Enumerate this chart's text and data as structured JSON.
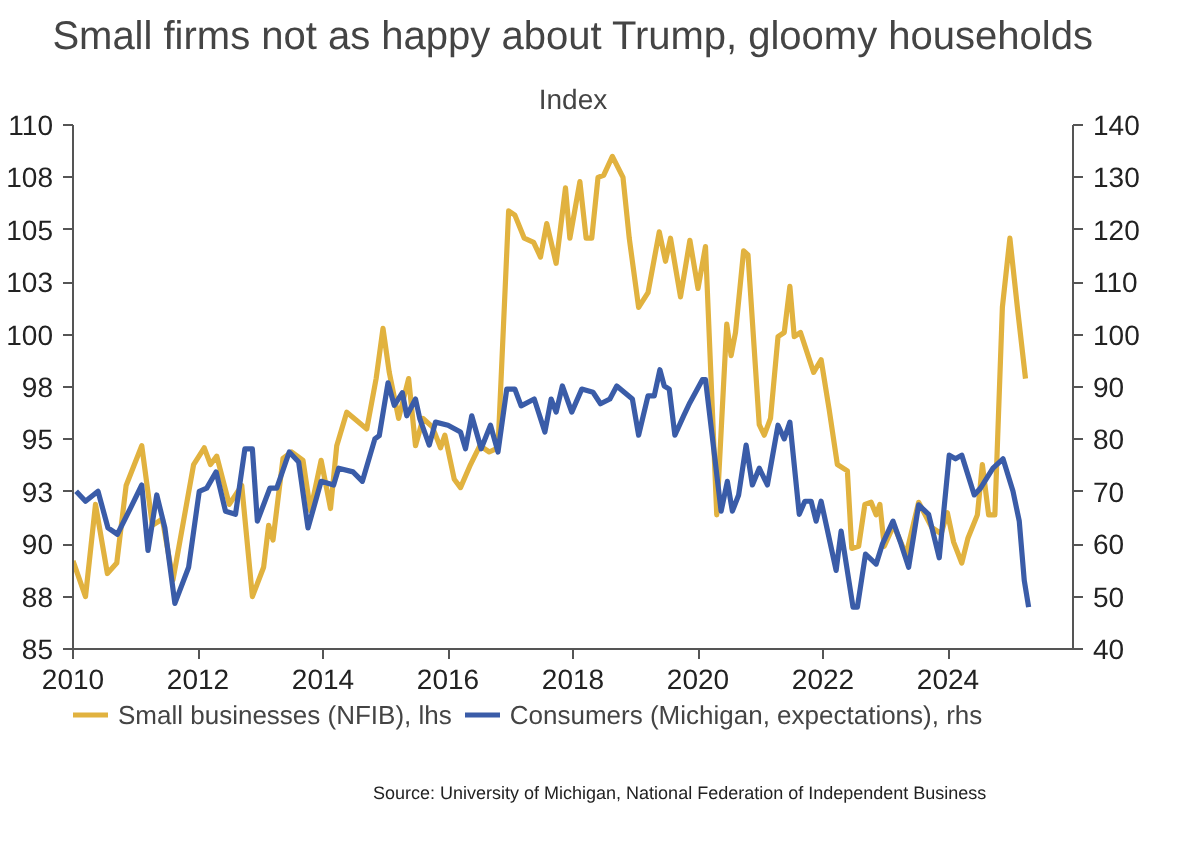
{
  "chart_data": {
    "type": "line",
    "title": "Small firms not as happy about Trump, gloomy households",
    "subtitle": "Index",
    "annotations": [
      "Source: University of Michigan, National Federation of Independent Business"
    ],
    "xlim": [
      2010,
      2026
    ],
    "xticks": [
      2010,
      2012,
      2014,
      2016,
      2018,
      2020,
      2022,
      2024
    ],
    "ylim": [
      85,
      110
    ],
    "yticks": [
      85,
      {
        "value": 87.5,
        "label": "88"
      },
      90,
      {
        "value": 92.5,
        "label": "93"
      },
      95,
      {
        "value": 97.5,
        "label": "98"
      },
      100,
      {
        "value": 102.5,
        "label": "103"
      },
      105,
      {
        "value": 107.5,
        "label": "108"
      },
      110
    ],
    "y2lim": [
      40,
      140
    ],
    "y2ticks": [
      40,
      50,
      60,
      70,
      80,
      90,
      100,
      110,
      120,
      130,
      140
    ],
    "grid": false,
    "legend": "bottom",
    "line_style": "solid",
    "series": [
      {
        "name": "Small businesses (NFIB), lhs",
        "color": "#e1b23f",
        "x": [
          2010.0,
          2010.2,
          2010.36,
          2010.55,
          2010.7,
          2010.85,
          2011.1,
          2011.27,
          2011.43,
          2011.6,
          2011.93,
          2012.1,
          2012.2,
          2012.3,
          2012.5,
          2012.7,
          2012.87,
          2013.05,
          2013.13,
          2013.2,
          2013.36,
          2013.5,
          2013.68,
          2013.8,
          2013.97,
          2014.12,
          2014.22,
          2014.38,
          2014.5,
          2014.7,
          2014.85,
          2014.96,
          2015.06,
          2015.21,
          2015.37,
          2015.48,
          2015.6,
          2015.75,
          2015.88,
          2015.95,
          2016.1,
          2016.2,
          2016.36,
          2016.51,
          2016.66,
          2016.8,
          2016.97,
          2017.07,
          2017.22,
          2017.37,
          2017.48,
          2017.58,
          2017.73,
          2017.88,
          2017.95,
          2018.11,
          2018.21,
          2018.3,
          2018.4,
          2018.49,
          2018.63,
          2018.8,
          2018.9,
          2019.05,
          2019.2,
          2019.38,
          2019.48,
          2019.56,
          2019.72,
          2019.87,
          2020.0,
          2020.12,
          2020.3,
          2020.46,
          2020.53,
          2020.6,
          2020.73,
          2020.8,
          2020.98,
          2021.06,
          2021.16,
          2021.28,
          2021.38,
          2021.47,
          2021.54,
          2021.64,
          2021.85,
          2021.97,
          2022.1,
          2022.23,
          2022.39,
          2022.46,
          2022.57,
          2022.67,
          2022.77,
          2022.85,
          2022.91,
          2022.98,
          2023.13,
          2023.33,
          2023.53,
          2023.74,
          2023.89,
          2023.99,
          2024.09,
          2024.22,
          2024.32,
          2024.47,
          2024.55,
          2024.65,
          2024.75,
          2024.87,
          2024.99,
          2025.11,
          2025.24
        ],
        "values": [
          89.2,
          87.5,
          91.9,
          88.6,
          89.1,
          92.8,
          94.7,
          90.9,
          91.2,
          88.3,
          93.8,
          94.6,
          93.8,
          94.2,
          91.9,
          92.8,
          87.5,
          88.9,
          90.9,
          90.2,
          94.1,
          94.4,
          94.0,
          91.6,
          94.0,
          91.7,
          94.7,
          96.3,
          96.0,
          95.5,
          97.9,
          100.3,
          98.2,
          96.0,
          97.9,
          94.7,
          96.0,
          95.6,
          94.6,
          95.2,
          93.1,
          92.7,
          93.8,
          94.7,
          94.4,
          94.6,
          105.9,
          105.7,
          104.6,
          104.4,
          103.7,
          105.3,
          103.4,
          107.0,
          104.6,
          107.3,
          104.6,
          104.6,
          107.5,
          107.6,
          108.5,
          107.5,
          104.6,
          101.3,
          102.0,
          104.9,
          103.5,
          104.6,
          101.8,
          104.5,
          102.2,
          104.2,
          91.4,
          100.5,
          99.0,
          100.1,
          104.0,
          103.8,
          95.7,
          95.2,
          96.0,
          99.9,
          100.1,
          102.3,
          99.9,
          100.1,
          98.2,
          98.8,
          96.4,
          93.8,
          93.5,
          89.8,
          89.9,
          91.9,
          92.0,
          91.4,
          91.9,
          89.9,
          90.9,
          89.5,
          92.0,
          90.8,
          90.5,
          91.5,
          90.1,
          89.1,
          90.3,
          91.4,
          93.8,
          91.4,
          91.4,
          101.3,
          104.6,
          101.3,
          97.9
        ]
      },
      {
        "name": "Consumers (Michigan, expectations), rhs",
        "color": "#3a5ca8",
        "axis": "y2",
        "x": [
          2010.05,
          2010.2,
          2010.4,
          2010.56,
          2010.71,
          2010.92,
          2011.1,
          2011.2,
          2011.34,
          2011.47,
          2011.63,
          2011.85,
          2012.02,
          2012.14,
          2012.29,
          2012.44,
          2012.6,
          2012.75,
          2012.87,
          2012.95,
          2013.15,
          2013.26,
          2013.46,
          2013.61,
          2013.76,
          2013.97,
          2014.17,
          2014.25,
          2014.48,
          2014.63,
          2014.83,
          2014.9,
          2015.04,
          2015.14,
          2015.27,
          2015.34,
          2015.48,
          2015.55,
          2015.7,
          2015.8,
          2016.0,
          2016.2,
          2016.28,
          2016.38,
          2016.53,
          2016.68,
          2016.8,
          2016.94,
          2017.07,
          2017.17,
          2017.38,
          2017.55,
          2017.65,
          2017.73,
          2017.83,
          2017.98,
          2018.14,
          2018.32,
          2018.44,
          2018.59,
          2018.7,
          2018.95,
          2019.05,
          2019.2,
          2019.3,
          2019.39,
          2019.46,
          2019.54,
          2019.63,
          2019.77,
          2019.87,
          2020.07,
          2020.12,
          2020.37,
          2020.47,
          2020.55,
          2020.65,
          2020.77,
          2020.87,
          2020.98,
          2021.11,
          2021.28,
          2021.38,
          2021.47,
          2021.62,
          2021.71,
          2021.81,
          2021.89,
          2021.97,
          2022.21,
          2022.29,
          2022.48,
          2022.55,
          2022.68,
          2022.85,
          2022.95,
          2023.12,
          2023.25,
          2023.37,
          2023.53,
          2023.69,
          2023.86,
          2024.02,
          2024.12,
          2024.22,
          2024.42,
          2024.52,
          2024.72,
          2024.88,
          2025.04,
          2025.14,
          2025.22,
          2025.29
        ],
        "values": [
          70.1,
          68.2,
          70.1,
          63.1,
          61.9,
          66.9,
          71.3,
          58.8,
          69.4,
          63.1,
          48.7,
          55.6,
          70.1,
          70.7,
          73.8,
          66.3,
          65.7,
          78.2,
          78.2,
          64.4,
          70.7,
          70.7,
          77.6,
          75.7,
          63.1,
          72.0,
          71.3,
          74.5,
          73.8,
          72.0,
          80.1,
          80.7,
          90.8,
          86.5,
          88.9,
          84.5,
          87.7,
          83.9,
          78.9,
          83.3,
          82.7,
          81.4,
          78.2,
          84.5,
          78.2,
          82.7,
          77.6,
          89.6,
          89.6,
          86.4,
          87.7,
          81.4,
          87.7,
          85.2,
          90.2,
          85.2,
          89.6,
          89.0,
          86.8,
          87.7,
          90.2,
          87.7,
          80.8,
          88.3,
          88.3,
          93.3,
          90.2,
          89.6,
          80.8,
          84.5,
          87.0,
          91.4,
          91.4,
          66.3,
          72.0,
          66.3,
          69.4,
          78.9,
          71.3,
          74.5,
          71.3,
          82.7,
          80.1,
          83.3,
          65.7,
          68.2,
          68.2,
          64.4,
          68.2,
          55.0,
          62.5,
          48.0,
          48.0,
          58.1,
          56.2,
          60.0,
          64.4,
          60.0,
          55.6,
          67.5,
          65.7,
          57.4,
          77.0,
          76.3,
          77.0,
          69.4,
          70.7,
          74.5,
          76.3,
          70.1,
          64.4,
          53.1,
          48.0
        ]
      }
    ]
  }
}
